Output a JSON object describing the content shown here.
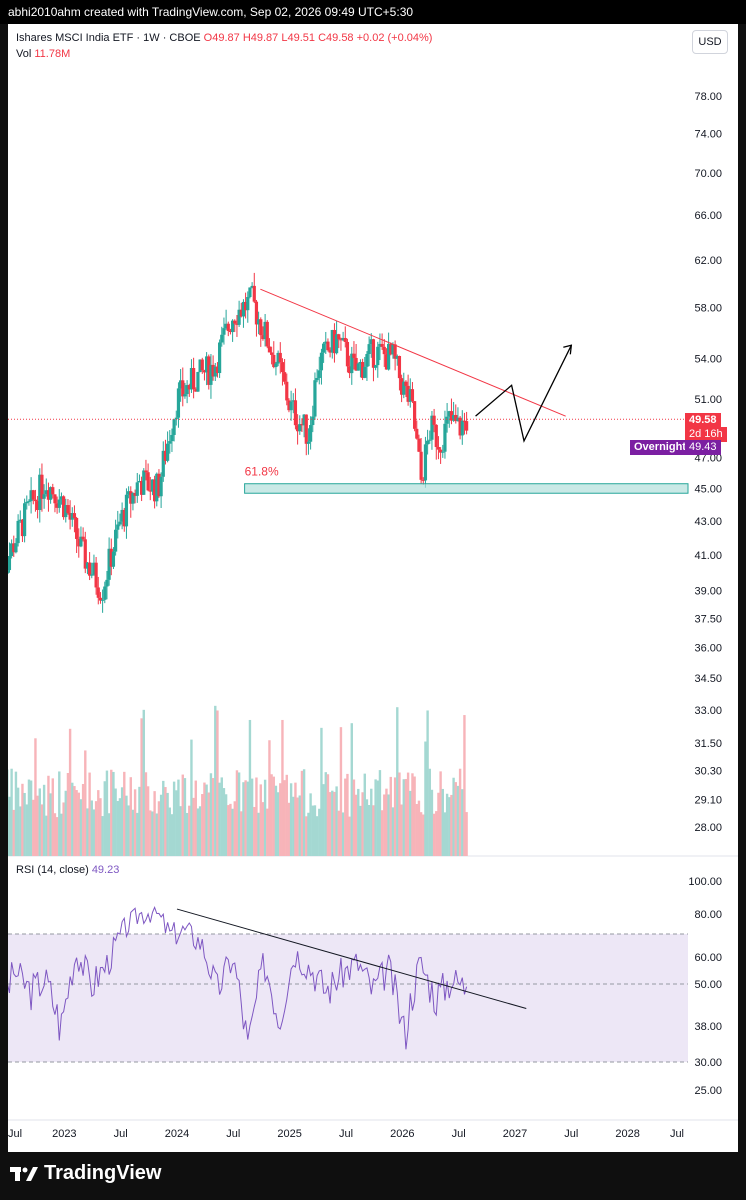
{
  "topbar": {
    "text": "abhi2010ahm created with TradingView.com, Sep 02, 2026 09:49 UTC+5:30"
  },
  "header": {
    "symbol": "Ishares MSCI India ETF · 1W · CBOE",
    "open": "O49.87",
    "high": "H49.87",
    "low": "L49.51",
    "close": "C49.58",
    "change": "+0.02 (+0.04%)",
    "vol_label": "Vol",
    "vol_value": "11.78M",
    "currency": "USD"
  },
  "rsi_header": {
    "label": "RSI (14, close)",
    "value": "49.23"
  },
  "price_tags": {
    "last_price": "49.58",
    "countdown": "2d 16h",
    "overnight_label": "Overnight",
    "overnight_price": "49.43"
  },
  "annotation": {
    "fib_label": "61.8%"
  },
  "brand": {
    "name": "TradingView"
  },
  "colors": {
    "up": "#26a69a",
    "down": "#f23645",
    "rsi_line": "#7e57c2",
    "rsi_band": "#ede7f6",
    "fib_zone": "#b2dfdb",
    "overnight": "#7b1fa2",
    "trendline": "#f23645"
  },
  "chart_data": {
    "type": "candlestick",
    "title": "Ishares MSCI India ETF",
    "interval": "1W",
    "exchange": "CBOE",
    "y_scale": "log",
    "price_ticks": [
      "78.00",
      "74.00",
      "70.00",
      "66.00",
      "62.00",
      "58.00",
      "54.00",
      "51.00",
      "47.00",
      "45.00",
      "43.00",
      "41.00",
      "39.00",
      "37.50",
      "36.00",
      "34.50",
      "33.00",
      "31.50",
      "30.30",
      "29.10",
      "28.00"
    ],
    "x_ticks": [
      "Jul",
      "2023",
      "Jul",
      "2024",
      "Jul",
      "2025",
      "Jul",
      "2026",
      "Jul",
      "2027",
      "Jul",
      "2028",
      "Jul"
    ],
    "price_keypoints": {
      "x": [
        "2022-06",
        "2022-09",
        "2022-11",
        "2023-01",
        "2023-03",
        "2023-05",
        "2023-07",
        "2023-09",
        "2023-11",
        "2024-01",
        "2024-03",
        "2024-05",
        "2024-07",
        "2024-09",
        "2024-10",
        "2024-12",
        "2025-01",
        "2025-03",
        "2025-04",
        "2025-06",
        "2025-08",
        "2025-10",
        "2025-12",
        "2026-01",
        "2026-02",
        "2026-03",
        "2026-04",
        "2026-05",
        "2026-06",
        "2026-07",
        "2026-08"
      ],
      "close": [
        39.5,
        43.5,
        45.5,
        44.0,
        41.0,
        39.0,
        43.0,
        45.5,
        45.0,
        51.0,
        52.5,
        53.5,
        57.5,
        58.5,
        56.5,
        53.0,
        50.5,
        48.5,
        53.5,
        55.5,
        53.0,
        54.5,
        54.0,
        52.0,
        50.5,
        45.5,
        49.0,
        48.0,
        49.5,
        49.0,
        49.58
      ]
    },
    "volume_ticks_note": "volume bars shown as histogram; peaks approx 2x average",
    "rsi": {
      "period": 14,
      "last": 49.23,
      "ticks": [
        "100.00",
        "80.00",
        "60.00",
        "50.00",
        "38.00",
        "30.00",
        "25.00"
      ],
      "upper_band": 70,
      "lower_band": 30,
      "keypoints": [
        40,
        55,
        48,
        52,
        38,
        62,
        50,
        58,
        72,
        80,
        82,
        70,
        72,
        66,
        48,
        60,
        32,
        58,
        40,
        62,
        56,
        48,
        54,
        58,
        48,
        56,
        36,
        58,
        46,
        52,
        49.23
      ]
    },
    "annotations": [
      {
        "type": "trendline",
        "label": "descending resistance (price)"
      },
      {
        "type": "fib_zone",
        "label": "61.8%",
        "price_range": [
          44.7,
          45.3
        ]
      },
      {
        "type": "projection_path",
        "label": "projected move"
      },
      {
        "type": "trendline",
        "label": "descending resistance (RSI)"
      }
    ]
  }
}
